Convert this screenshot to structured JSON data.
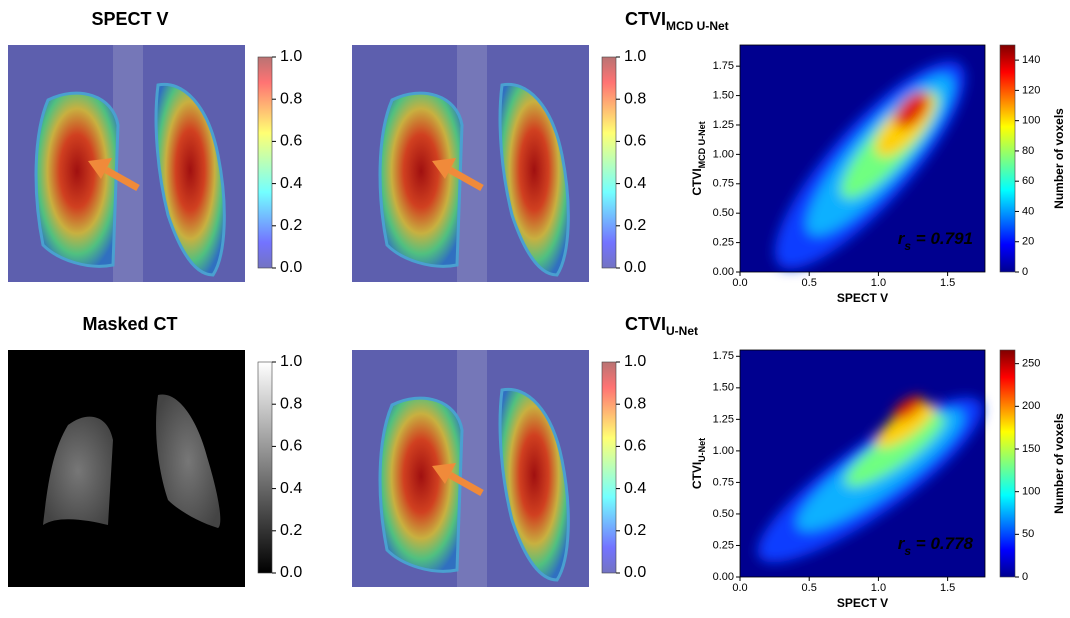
{
  "chart_data": [
    {
      "type": "image",
      "title": "SPECT V",
      "colormap": "jet",
      "clim": [
        0,
        1
      ],
      "cticks": [
        {
          "value": 0,
          "label": "0.0"
        },
        {
          "value": 0.2,
          "label": "0.2"
        },
        {
          "value": 0.4,
          "label": "0.4"
        },
        {
          "value": 0.6,
          "label": "0.6"
        },
        {
          "value": 0.8,
          "label": "0.8"
        },
        {
          "value": 1,
          "label": "1.0"
        }
      ]
    },
    {
      "type": "image",
      "title": {
        "main": "CTVI",
        "sub": "MCD U-Net"
      },
      "colormap": "jet",
      "clim": [
        0,
        1
      ],
      "cticks": [
        {
          "value": 0,
          "label": "0.0"
        },
        {
          "value": 0.2,
          "label": "0.2"
        },
        {
          "value": 0.4,
          "label": "0.4"
        },
        {
          "value": 0.6,
          "label": "0.6"
        },
        {
          "value": 0.8,
          "label": "0.8"
        },
        {
          "value": 1,
          "label": "1.0"
        }
      ]
    },
    {
      "type": "heatmap",
      "xlabel": "SPECT V",
      "ylabel": {
        "main": "CTVI",
        "sub": "MCD U-Net"
      },
      "xlim": [
        0,
        1.77
      ],
      "xticks": [
        {
          "value": 0,
          "label": "0.0"
        },
        0.5,
        {
          "value": 1,
          "label": "1.0"
        },
        1.5
      ],
      "ylim": [
        0,
        1.93
      ],
      "yticks": [
        {
          "value": 0,
          "label": "0.00"
        },
        0.25,
        {
          "value": 0.5,
          "label": "0.50"
        },
        0.75,
        {
          "value": 1,
          "label": "1.00"
        },
        1.25,
        {
          "value": 1.5,
          "label": "1.50"
        },
        1.75
      ],
      "colorbar_label": "Number of voxels",
      "clim": [
        0,
        150
      ],
      "cticks": [
        0,
        20,
        40,
        60,
        80,
        100,
        120,
        140
      ],
      "annotation": {
        "main": "r",
        "sub": "s",
        "rest": " = 0.791"
      }
    },
    {
      "type": "image",
      "title": "Masked CT",
      "colormap": "gray",
      "clim": [
        0,
        1
      ],
      "cticks": [
        {
          "value": 0,
          "label": "0.0"
        },
        {
          "value": 0.2,
          "label": "0.2"
        },
        {
          "value": 0.4,
          "label": "0.4"
        },
        {
          "value": 0.6,
          "label": "0.6"
        },
        {
          "value": 0.8,
          "label": "0.8"
        },
        {
          "value": 1,
          "label": "1.0"
        }
      ]
    },
    {
      "type": "image",
      "title": {
        "main": "CTVI",
        "sub": "U-Net"
      },
      "colormap": "jet",
      "clim": [
        0,
        1
      ],
      "cticks": [
        {
          "value": 0,
          "label": "0.0"
        },
        {
          "value": 0.2,
          "label": "0.2"
        },
        {
          "value": 0.4,
          "label": "0.4"
        },
        {
          "value": 0.6,
          "label": "0.6"
        },
        {
          "value": 0.8,
          "label": "0.8"
        },
        {
          "value": 1,
          "label": "1.0"
        }
      ]
    },
    {
      "type": "heatmap",
      "xlabel": "SPECT V",
      "ylabel": {
        "main": "CTVI",
        "sub": "U-Net"
      },
      "xlim": [
        0,
        1.77
      ],
      "xticks": [
        {
          "value": 0,
          "label": "0.0"
        },
        0.5,
        {
          "value": 1,
          "label": "1.0"
        },
        1.5
      ],
      "ylim": [
        0,
        1.8
      ],
      "yticks": [
        {
          "value": 0,
          "label": "0.00"
        },
        0.25,
        {
          "value": 0.5,
          "label": "0.50"
        },
        0.75,
        {
          "value": 1,
          "label": "1.00"
        },
        1.25,
        {
          "value": 1.5,
          "label": "1.50"
        },
        1.75
      ],
      "colorbar_label": "Number of voxels",
      "clim": [
        0,
        266
      ],
      "cticks": [
        0,
        50,
        100,
        150,
        200,
        250
      ],
      "annotation": {
        "main": "r",
        "sub": "s",
        "rest": " = 0.778"
      }
    }
  ]
}
